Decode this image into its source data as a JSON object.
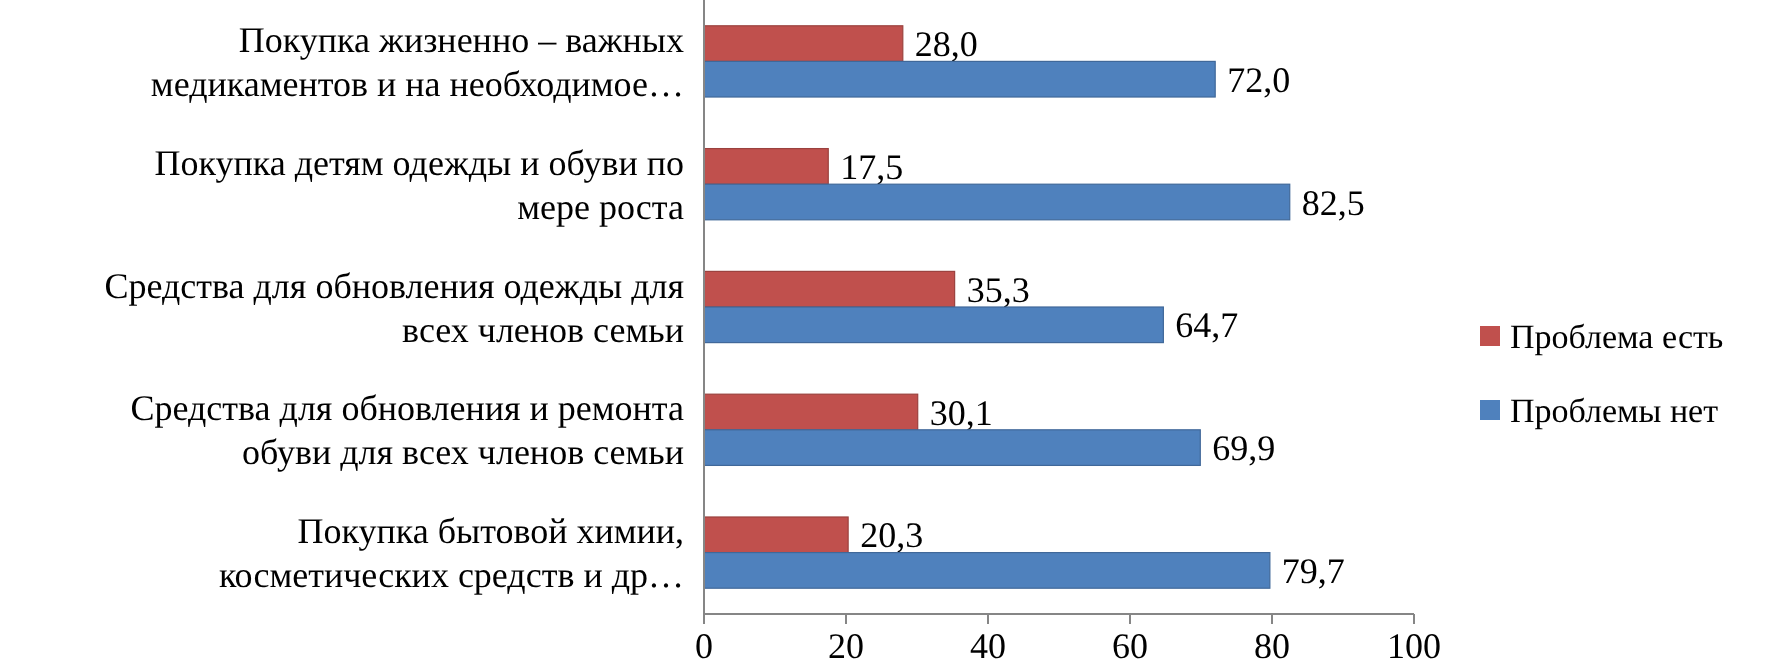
{
  "chart_data": {
    "type": "bar",
    "orientation": "horizontal",
    "categories": [
      "Покупка жизненно – важных медикаментов и на необходимое…",
      "Покупка детям одежды и обуви по мере роста",
      "Средства для обновления одежды для всех членов семьи",
      "Средства для обновления и ремонта обуви для всех членов семьи",
      "Покупка бытовой химии, косметических средств и др…"
    ],
    "series": [
      {
        "name": "Проблема есть",
        "color": "#c0504d",
        "values": [
          28.0,
          17.5,
          35.3,
          30.1,
          20.3
        ],
        "value_labels": [
          "28,0",
          "17,5",
          "35,3",
          "30,1",
          "20,3"
        ]
      },
      {
        "name": "Проблемы нет",
        "color": "#4f81bd",
        "values": [
          72.0,
          82.5,
          64.7,
          69.9,
          79.7
        ],
        "value_labels": [
          "72,0",
          "82,5",
          "64,7",
          "69,9",
          "79,7"
        ]
      }
    ],
    "xlim": [
      0,
      100
    ],
    "xticks": [
      0,
      20,
      40,
      60,
      80,
      100
    ],
    "grid": false,
    "legend": "right"
  }
}
